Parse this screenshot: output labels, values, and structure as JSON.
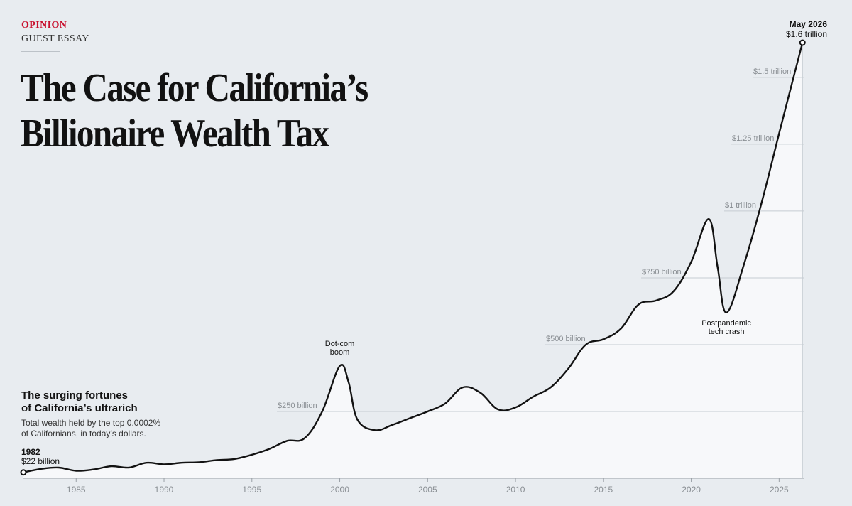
{
  "header": {
    "section": "OPINION",
    "kicker": "GUEST ESSAY",
    "headline_lines": [
      "The Case for California’s",
      "Billionaire Wealth Tax"
    ]
  },
  "chart_intro": {
    "title_lines": [
      "The surging fortunes",
      "of California’s ultrarich"
    ],
    "desc_lines": [
      "Total wealth held by the top 0.0002%",
      "of Californians, in today’s dollars."
    ]
  },
  "colors": {
    "background": "#e8ecf0",
    "area_fill": "#f7f8fa",
    "line": "#121212",
    "gridline": "#c6ccd2",
    "axis_text": "#8a8f94",
    "brand_red": "#c8102e"
  },
  "chart_data": {
    "type": "line",
    "title": "The surging fortunes of California’s ultrarich",
    "subtitle": "Total wealth held by the top 0.0002% of Californians, in today’s dollars.",
    "unit": "billion USD",
    "xlim": [
      1982,
      2026.4
    ],
    "ylim": [
      0,
      1630
    ],
    "grid": true,
    "x_ticks": [
      {
        "value": 1985,
        "label": "1985"
      },
      {
        "value": 1990,
        "label": "1990"
      },
      {
        "value": 1995,
        "label": "1995"
      },
      {
        "value": 2000,
        "label": "2000"
      },
      {
        "value": 2005,
        "label": "2005"
      },
      {
        "value": 2010,
        "label": "2010"
      },
      {
        "value": 2015,
        "label": "2015"
      },
      {
        "value": 2020,
        "label": "2020"
      },
      {
        "value": 2025,
        "label": "2025"
      }
    ],
    "y_ticks": [
      {
        "value": 250,
        "label": "$250 billion"
      },
      {
        "value": 500,
        "label": "$500 billion"
      },
      {
        "value": 750,
        "label": "$750 billion"
      },
      {
        "value": 1000,
        "label": "$1 trillion"
      },
      {
        "value": 1250,
        "label": "$1.25 trillion"
      },
      {
        "value": 1500,
        "label": "$1.5 trillion"
      }
    ],
    "series": [
      {
        "x": [
          1982,
          1983,
          1984,
          1985,
          1986,
          1987,
          1988,
          1989,
          1990,
          1991,
          1992,
          1993,
          1994,
          1995,
          1996,
          1997,
          1998,
          1999,
          2000,
          2000.5,
          2001,
          2002,
          2003,
          2004,
          2005,
          2006,
          2007,
          2008,
          2009,
          2010,
          2011,
          2012,
          2013,
          2014,
          2015,
          2016,
          2017,
          2018,
          2019,
          2020,
          2021,
          2021.5,
          2022,
          2023,
          2024,
          2025,
          2026.33
        ],
        "y": [
          22,
          35,
          40,
          28,
          33,
          45,
          40,
          58,
          52,
          58,
          60,
          68,
          72,
          88,
          110,
          140,
          150,
          250,
          420,
          360,
          220,
          180,
          200,
          225,
          250,
          280,
          340,
          320,
          258,
          265,
          305,
          340,
          410,
          500,
          520,
          560,
          650,
          665,
          700,
          810,
          970,
          790,
          620,
          800,
          1030,
          1290,
          1630
        ]
      }
    ],
    "endpoints": [
      {
        "year": "1982",
        "value": "$22 billion"
      },
      {
        "year": "May 2026",
        "value": "$1.6 trillion"
      }
    ],
    "annotations": [
      {
        "label_lines": [
          "Dot-com",
          "boom"
        ],
        "x": 2000,
        "y": 420,
        "position": "above"
      },
      {
        "label_lines": [
          "Postpandemic",
          "tech crash"
        ],
        "x": 2022,
        "y": 620,
        "position": "below"
      }
    ]
  }
}
